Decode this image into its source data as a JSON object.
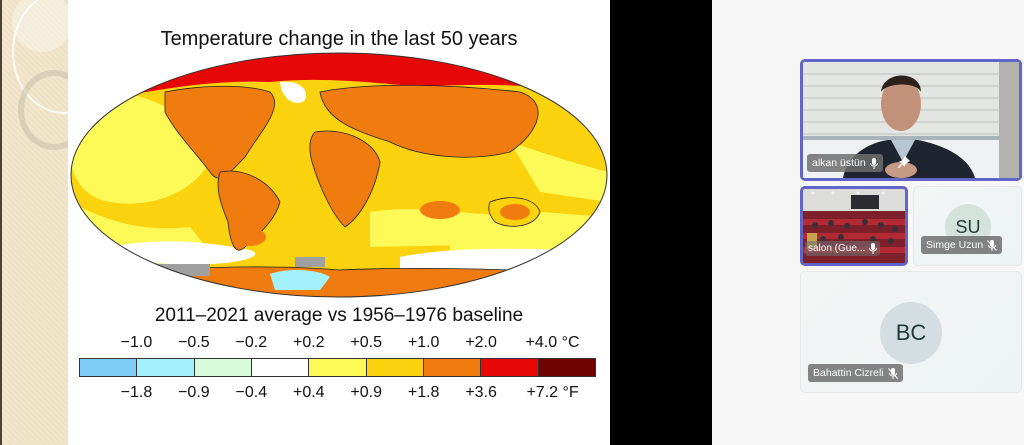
{
  "slide": {
    "title": "Temperature change in the last 50 years",
    "subtitle": "2011–2021 average vs 1956–1976 baseline",
    "celsius_labels": [
      "−1.0",
      "−0.5",
      "−0.2",
      "+0.2",
      "+0.5",
      "+1.0",
      "+2.0",
      "+4.0 °C"
    ],
    "fahrenheit_labels": [
      "−1.8",
      "−0.9",
      "−0.4",
      "+0.4",
      "+0.9",
      "+1.8",
      "+3.6",
      "+7.2 °F"
    ],
    "colorbar_colors": [
      "#80ccf8",
      "#a3f1fb",
      "#d8fcd9",
      "#ffffff",
      "#fdf957",
      "#fbd20e",
      "#f07c0f",
      "#e80707",
      "#720304"
    ],
    "map_colors": {
      "ocean_yellow": "#fbd20e",
      "light_yellow": "#fdf957",
      "orange": "#f07c0f",
      "red": "#e80707",
      "dark_red": "#720304",
      "white": "#ffffff",
      "gray": "#a0a0a0",
      "light_blue": "#a3f1fb"
    }
  },
  "participants": [
    {
      "name": "alkan üstün",
      "mic": "mic-on",
      "pinned": true,
      "video": true,
      "active": true
    },
    {
      "name": "salon (Gue...",
      "mic": "mic-on",
      "pinned": false,
      "video": true,
      "active": true
    },
    {
      "name": "Simge Uzun",
      "initials": "SU",
      "mic": "mic-off",
      "pinned": false,
      "video": false,
      "active": false
    },
    {
      "name": "Bahattin Cizreli",
      "initials": "BC",
      "mic": "mic-off",
      "pinned": false,
      "video": false,
      "active": false
    }
  ],
  "colors": {
    "active_border": "#6264c8",
    "black_bar": "#000000",
    "panel_bg": "#f7f7f7"
  }
}
